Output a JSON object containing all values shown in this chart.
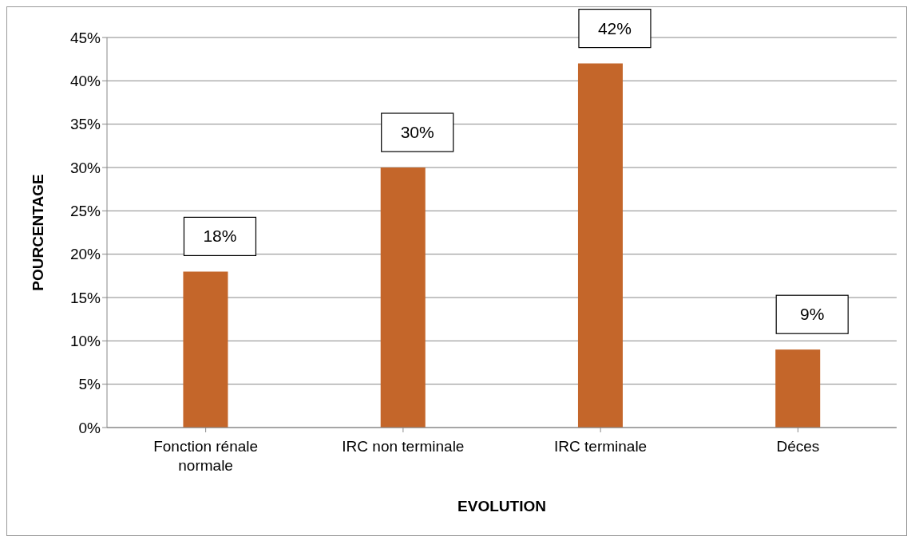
{
  "chart_data": {
    "type": "bar",
    "xlabel": "EVOLUTION",
    "ylabel": "POURCENTAGE",
    "categories": [
      "Fonction rénale normale",
      "IRC non terminale",
      "IRC terminale",
      "Déces"
    ],
    "values": [
      18,
      30,
      42,
      9
    ],
    "color": "#c4662a",
    "value_labels": [
      "18%",
      "30%",
      "42%",
      "9%"
    ],
    "ylim": [
      0,
      45
    ],
    "yticks": [
      {
        "value": 0,
        "label": "0%"
      },
      {
        "value": 5,
        "label": "5%"
      },
      {
        "value": 10,
        "label": "10%"
      },
      {
        "value": 15,
        "label": "15%"
      },
      {
        "value": 20,
        "label": "20%"
      },
      {
        "value": 25,
        "label": "25%"
      },
      {
        "value": 30,
        "label": "30%"
      },
      {
        "value": 35,
        "label": "35%"
      },
      {
        "value": 40,
        "label": "40%"
      },
      {
        "value": 45,
        "label": "45%"
      }
    ],
    "grid": "y"
  }
}
